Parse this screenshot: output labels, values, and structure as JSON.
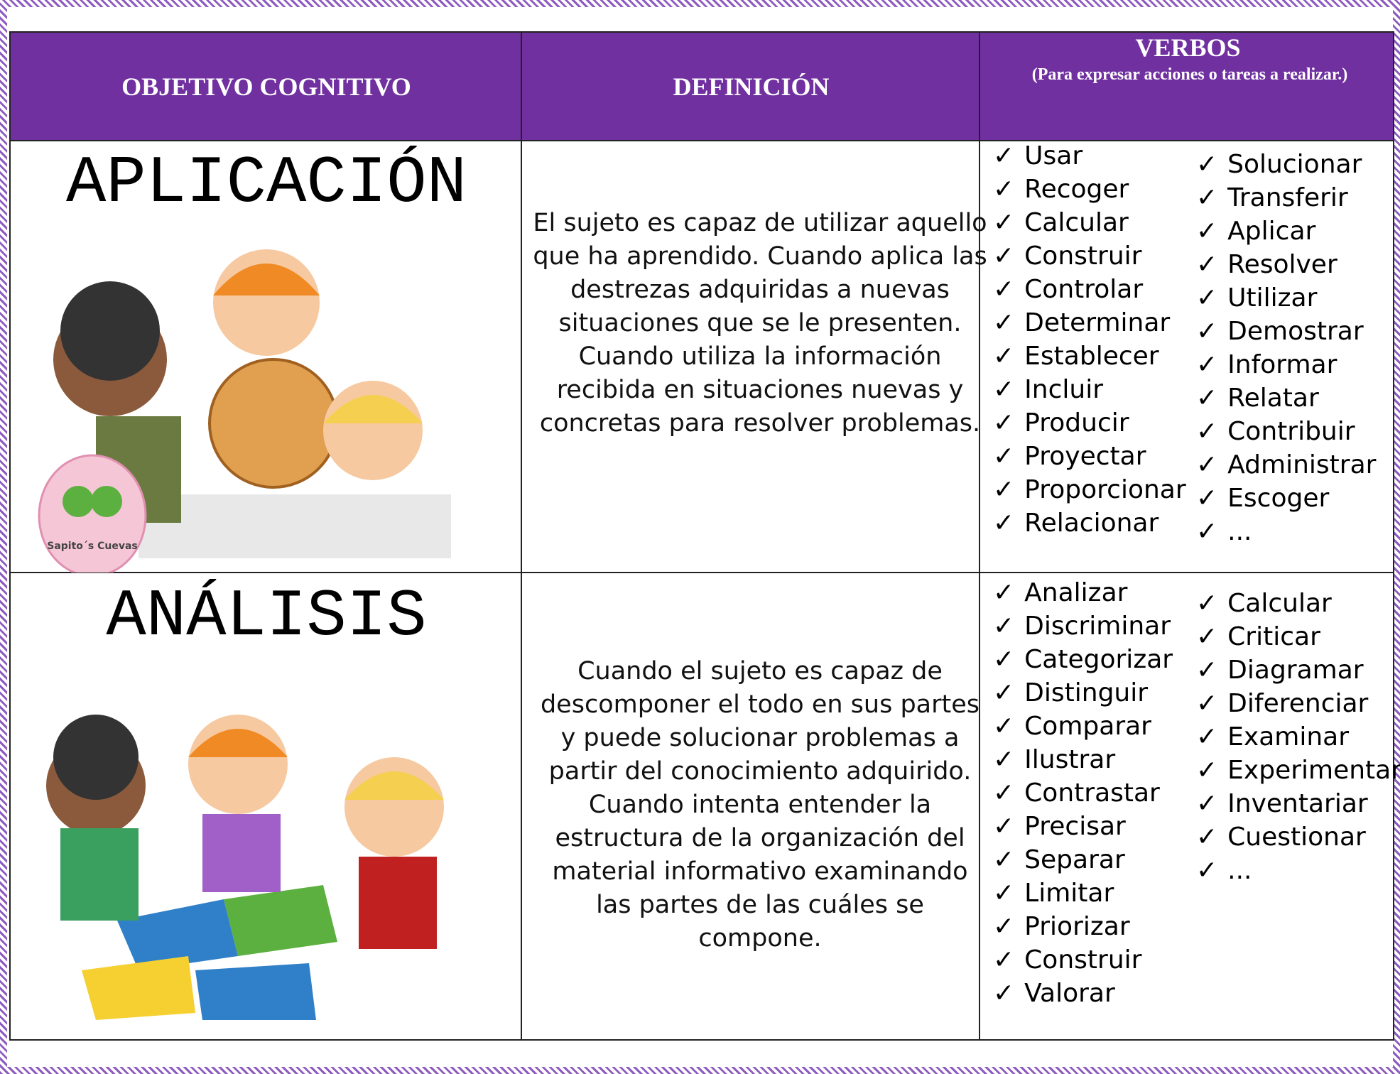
{
  "header": {
    "columns": [
      "OBJETIVO COGNITIVO",
      "DEFINICIÓN",
      "VERBOS"
    ],
    "verbs_subtitle": "(Para expresar acciones o tareas a realizar.)"
  },
  "rows": [
    {
      "objective": "APLICACIÓN",
      "definition": "El sujeto es capaz de utilizar aquello que ha aprendido. Cuando aplica las destrezas adquiridas a nuevas situaciones que se le presenten. Cuando utiliza la información recibida en situaciones nuevas y concretas para resolver problemas.",
      "verbs_col1": [
        "Usar",
        "Recoger",
        "Calcular",
        "Construir",
        "Controlar",
        "Determinar",
        "Establecer",
        "Incluir",
        "Producir",
        "Proyectar",
        "Proporcionar",
        "Relacionar"
      ],
      "verbs_col2": [
        "Solucionar",
        "Transferir",
        "Aplicar",
        "Resolver",
        "Utilizar",
        "Demostrar",
        "Informar",
        "Relatar",
        "Contribuir",
        "Administrar",
        "Escoger",
        "..."
      ],
      "logo": "Sapito´s Cuevas"
    },
    {
      "objective": "ANÁLISIS",
      "definition": "Cuando el sujeto es capaz de descomponer el todo en sus partes y puede solucionar problemas a partir del conocimiento adquirido. Cuando intenta entender la estructura de la organización del material informativo examinando las partes de las cuáles se compone.",
      "verbs_col1": [
        "Analizar",
        "Discriminar",
        "Categorizar",
        "Distinguir",
        "Comparar",
        "Ilustrar",
        "Contrastar",
        "Precisar",
        "Separar",
        "Limitar",
        "Priorizar",
        "Construir",
        "Valorar"
      ],
      "verbs_col2": [
        "Calcular",
        "Criticar",
        "Diagramar",
        "Diferenciar",
        "Examinar",
        "Experimentar",
        "Inventariar",
        "Cuestionar",
        "..."
      ]
    }
  ]
}
